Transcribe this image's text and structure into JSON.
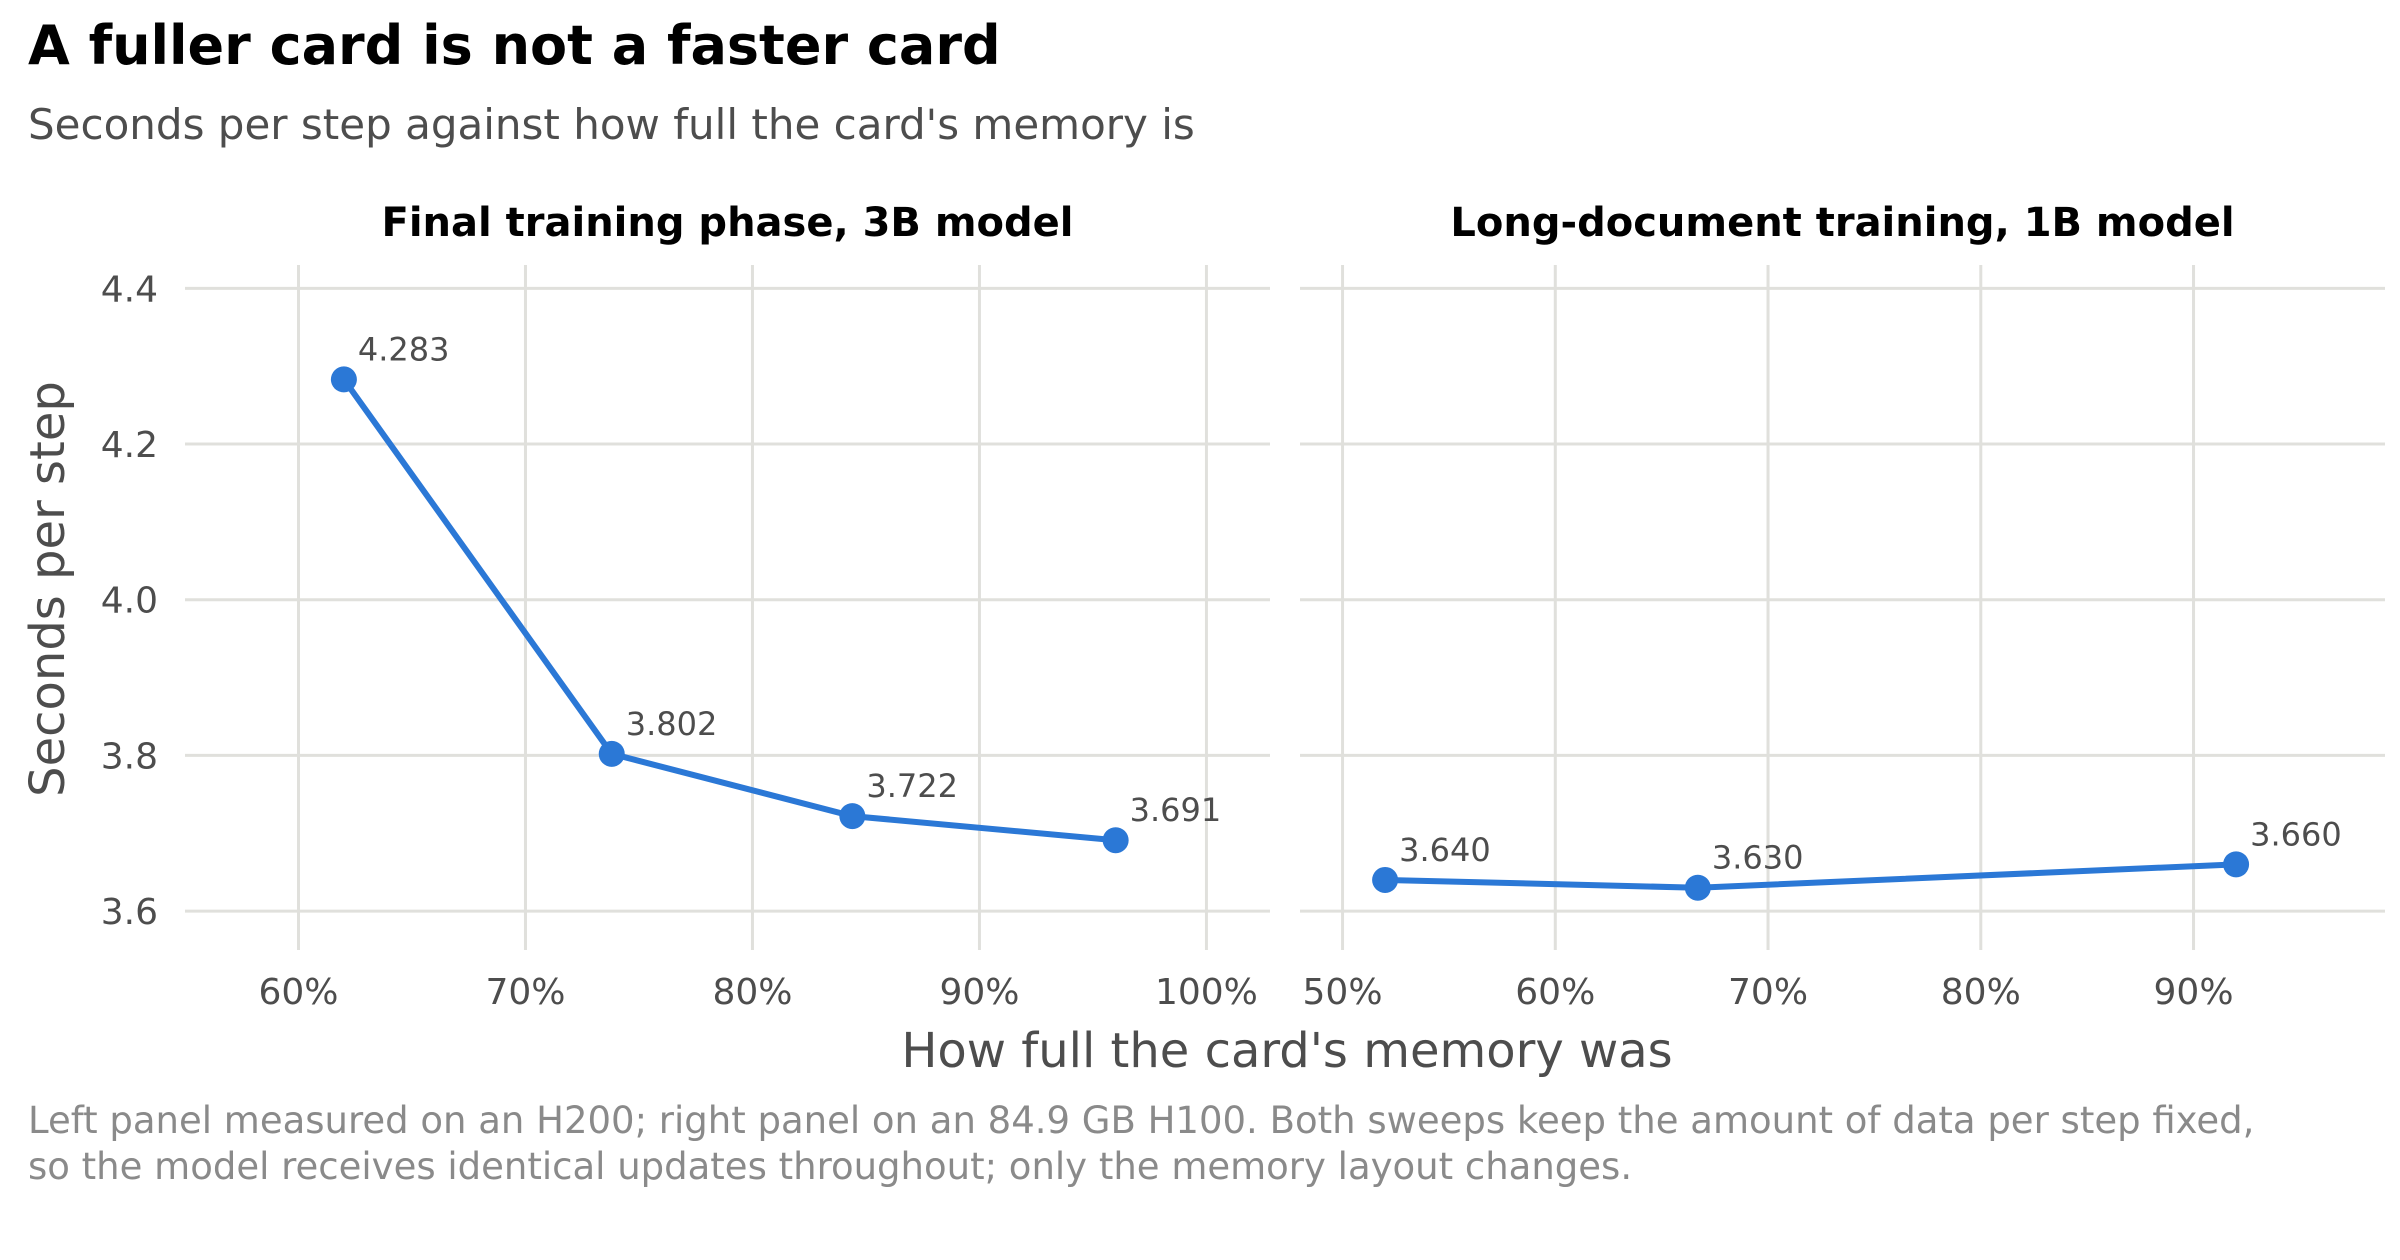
{
  "title": "A fuller card is not a faster card",
  "subtitle": "Seconds per step against how full the card's memory is",
  "caption": "Left panel measured on an H200; right panel on an 84.9 GB H100. Both sweeps keep the amount of data per step fixed, so the model receives identical updates throughout; only the memory layout changes.",
  "colors": {
    "series": "#2b78d6",
    "grid": "#e0e0dc"
  },
  "chart_data": {
    "type": "line",
    "xlabel": "How full the card's memory was",
    "ylabel": "Seconds per step",
    "ylim": [
      3.55,
      4.43
    ],
    "yticks": [
      3.6,
      3.8,
      4.0,
      4.2,
      4.4
    ],
    "ytick_labels": [
      "3.6",
      "3.8",
      "4.0",
      "4.2",
      "4.4"
    ],
    "grid": true,
    "panels": [
      {
        "title": "Final training phase, 3B model",
        "xlim": [
          0.55,
          1.028
        ],
        "xticks": [
          0.6,
          0.7,
          0.8,
          0.9,
          1.0
        ],
        "xtick_labels": [
          "60%",
          "70%",
          "80%",
          "90%",
          "100%"
        ],
        "x": [
          0.62,
          0.738,
          0.844,
          0.96
        ],
        "y": [
          4.283,
          3.802,
          3.722,
          3.691
        ],
        "labels": [
          "4.283",
          "3.802",
          "3.722",
          "3.691"
        ]
      },
      {
        "title": "Long-document training, 1B model",
        "xlim": [
          0.48,
          0.99
        ],
        "xticks": [
          0.5,
          0.6,
          0.7,
          0.8,
          0.9
        ],
        "xtick_labels": [
          "50%",
          "60%",
          "70%",
          "80%",
          "90%"
        ],
        "x": [
          0.52,
          0.667,
          0.92
        ],
        "y": [
          3.64,
          3.63,
          3.66
        ],
        "labels": [
          "3.640",
          "3.630",
          "3.660"
        ]
      }
    ]
  }
}
